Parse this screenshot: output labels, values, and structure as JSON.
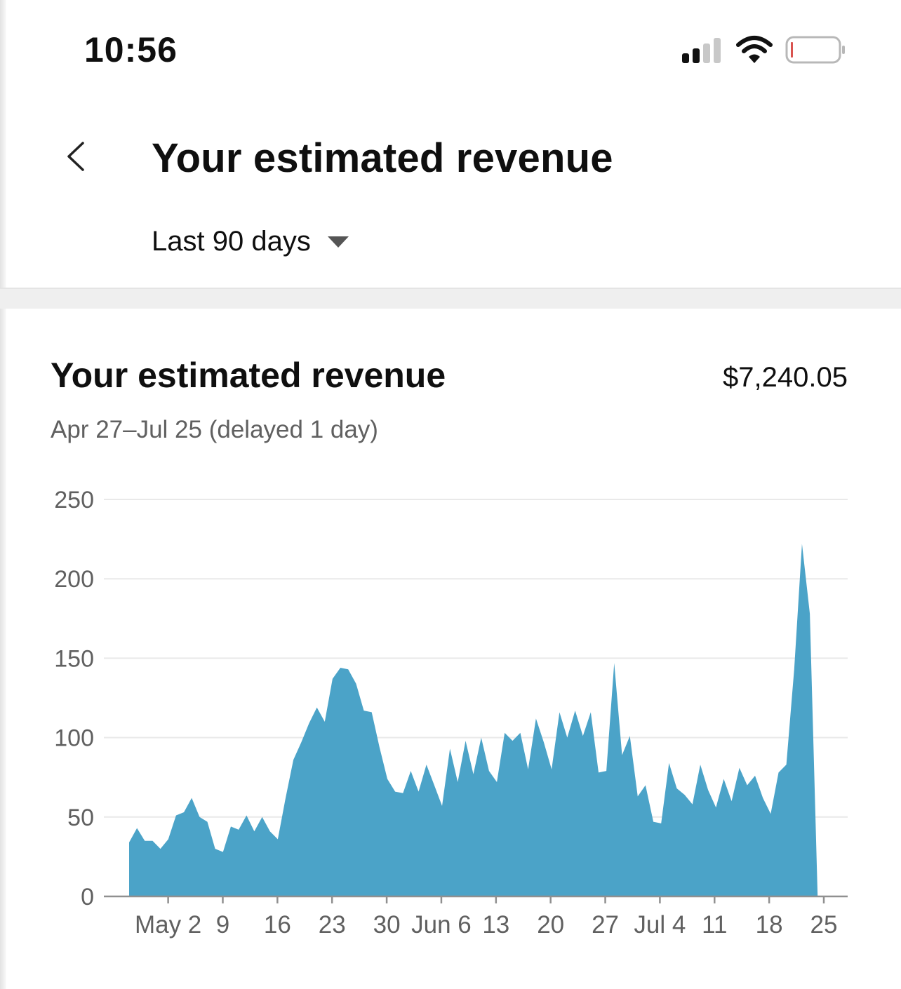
{
  "status_bar": {
    "time": "10:56",
    "icons": [
      "signal-icon",
      "wifi-icon",
      "battery-icon"
    ],
    "battery_color": "#d9534f"
  },
  "header": {
    "back_icon": "chevron-left-icon",
    "title": "Your estimated revenue",
    "period_selector": {
      "value": "Last 90 days",
      "icon": "dropdown-caret-icon"
    }
  },
  "card": {
    "title": "Your estimated revenue",
    "total": "$7,240.05",
    "range": "Apr 27–Jul 25 (delayed 1 day)"
  },
  "colors": {
    "area": "#4ba3c8",
    "grid": "#e9e9e9",
    "axis": "#909090"
  },
  "chart_data": {
    "type": "area",
    "title": "",
    "xlabel": "",
    "ylabel": "",
    "ylim": [
      0,
      250
    ],
    "y_ticks": [
      "0",
      "50",
      "100",
      "150",
      "200",
      "250"
    ],
    "x_ticks": [
      {
        "label": "May 2",
        "day": 6
      },
      {
        "label": "9",
        "day": 13
      },
      {
        "label": "16",
        "day": 20
      },
      {
        "label": "23",
        "day": 27
      },
      {
        "label": "30",
        "day": 34
      },
      {
        "label": "Jun 6",
        "day": 41
      },
      {
        "label": "13",
        "day": 48
      },
      {
        "label": "20",
        "day": 55
      },
      {
        "label": "27",
        "day": 62
      },
      {
        "label": "Jul 4",
        "day": 69
      },
      {
        "label": "11",
        "day": 76
      },
      {
        "label": "18",
        "day": 83
      },
      {
        "label": "25",
        "day": 90
      }
    ],
    "grid": true,
    "series": [
      {
        "values": [
          34,
          43,
          35,
          35,
          30,
          36,
          51,
          53,
          62,
          50,
          47,
          30,
          28,
          44,
          42,
          51,
          41,
          50,
          41,
          36,
          62,
          86,
          97,
          109,
          119,
          110,
          137,
          144,
          143,
          134,
          117,
          116,
          94,
          74,
          66,
          65,
          79,
          66,
          83,
          70,
          57,
          93,
          72,
          98,
          77,
          100,
          79,
          72,
          103,
          98,
          103,
          80,
          112,
          97,
          80,
          116,
          100,
          117,
          101,
          116,
          78,
          79,
          147,
          89,
          101,
          63,
          70,
          47,
          46,
          84,
          68,
          64,
          58,
          83,
          67,
          56,
          74,
          60,
          81,
          70,
          76,
          62,
          52,
          78,
          83,
          143,
          222,
          178,
          0
        ]
      }
    ]
  }
}
